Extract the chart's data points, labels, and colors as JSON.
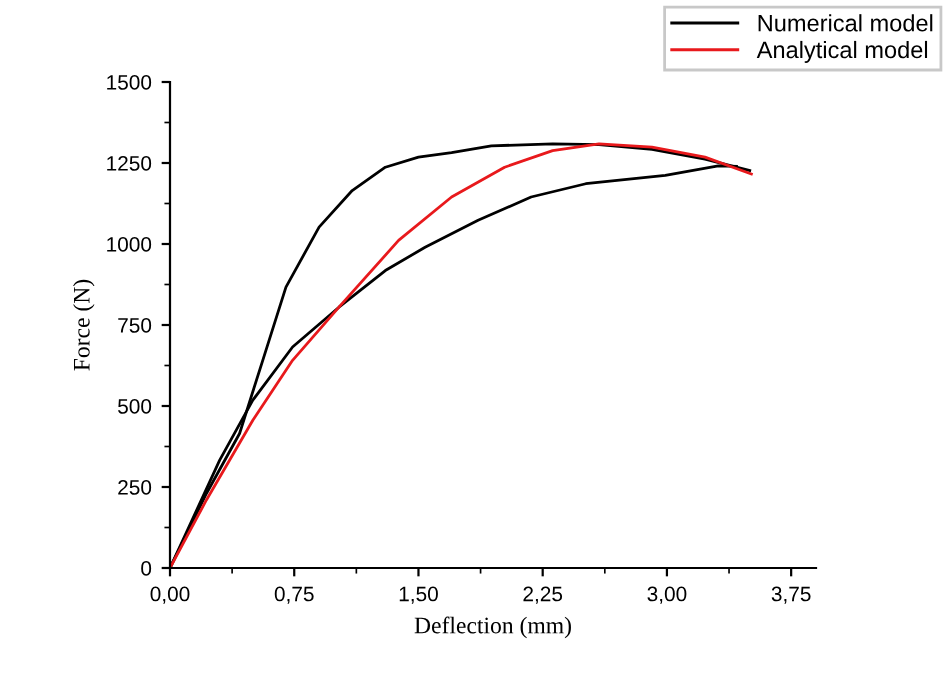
{
  "chart_data": {
    "type": "line",
    "xlabel": "Deflection (mm)",
    "ylabel": "Force (N)",
    "xlim": [
      0,
      3.9
    ],
    "ylim": [
      0,
      1500
    ],
    "xticks": [
      {
        "value": 0,
        "label": "0,00"
      },
      {
        "value": 0.75,
        "label": "0,75"
      },
      {
        "value": 1.5,
        "label": "1,50"
      },
      {
        "value": 2.25,
        "label": "2,25"
      },
      {
        "value": 3.0,
        "label": "3,00"
      },
      {
        "value": 3.75,
        "label": "3,75"
      }
    ],
    "yticks": [
      0,
      250,
      500,
      750,
      1000,
      1250,
      1500
    ],
    "grid": false,
    "legend": "top right",
    "marker": "none",
    "line_style": "solid",
    "series": [
      {
        "name": "Numerical model",
        "color": "#000000",
        "x": [
          0,
          0.22,
          0.42,
          0.56,
          0.7,
          0.9,
          1.1,
          1.3,
          1.5,
          1.7,
          1.94,
          2.31,
          2.59,
          2.91,
          3.23,
          3.5
        ],
        "values": [
          0,
          230,
          415,
          641,
          867,
          1052,
          1165,
          1237,
          1268,
          1282,
          1303,
          1309,
          1307,
          1292,
          1262,
          1227
        ]
      },
      {
        "color": "#000000",
        "x": [
          0,
          0.3,
          0.5,
          0.74,
          1.02,
          1.3,
          1.54,
          1.86,
          2.18,
          2.51,
          2.99,
          3.31,
          3.42
        ],
        "values": [
          0,
          333,
          518,
          682,
          805,
          918,
          990,
          1073,
          1145,
          1186,
          1212,
          1241,
          1240
        ]
      },
      {
        "name": "Analytical model",
        "color": "#e8191c",
        "x": [
          0,
          0.22,
          0.5,
          0.74,
          1.02,
          1.38,
          1.7,
          2.02,
          2.31,
          2.59,
          2.91,
          3.23,
          3.51
        ],
        "values": [
          0,
          210,
          456,
          641,
          805,
          1011,
          1145,
          1237,
          1288,
          1309,
          1299,
          1268,
          1216
        ]
      }
    ]
  }
}
